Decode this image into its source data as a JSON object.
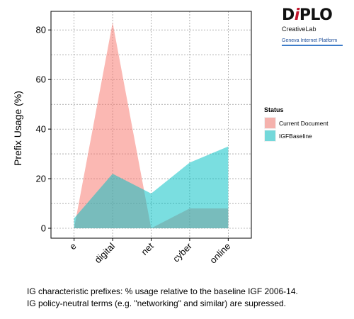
{
  "chart_data": {
    "type": "area",
    "categories": [
      "e",
      "digital",
      "net",
      "cyber",
      "online"
    ],
    "series": [
      {
        "name": "Current Document",
        "values": [
          0,
          83,
          0,
          8,
          8
        ],
        "color": "#f8766d"
      },
      {
        "name": "IGFBaseline",
        "values": [
          4,
          22,
          14,
          26.5,
          33
        ],
        "color": "#00bfc4"
      }
    ],
    "title": "",
    "xlabel": "",
    "ylabel": "Prefix Usage (%)",
    "ylim": [
      -4,
      87.5
    ],
    "yticks": [
      0,
      20,
      40,
      60,
      80
    ],
    "grid": true,
    "legend": {
      "title": "Status",
      "position": "right"
    }
  },
  "logo": {
    "name_part1": "D",
    "name_accent": "i",
    "name_part2": "PLO",
    "subtitle": "CreativeLab",
    "partner": "Geneva Internet Platform"
  },
  "caption": {
    "line1": "IG characteristic prefixes: % usage relative to the baseline IGF 2006-14.",
    "line2": "IG policy-neutral terms (e.g. \"networking\" and similar) are supressed."
  }
}
